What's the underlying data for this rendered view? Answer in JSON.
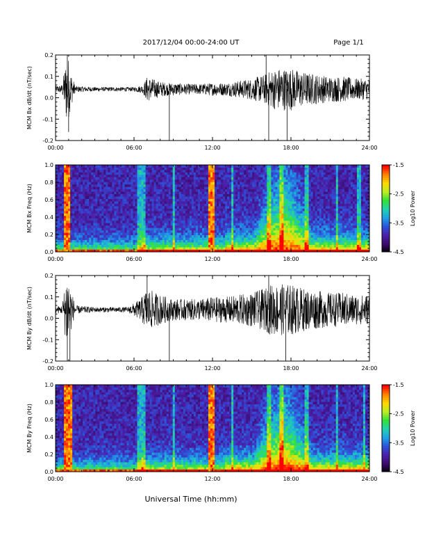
{
  "header": {
    "title": "2017/12/04  00:00-24:00 UT",
    "page": "Page 1/1"
  },
  "footer": {
    "xlabel": "Universal Time (hh:mm)"
  },
  "colors": {
    "background": "#ffffff",
    "trace": "#000000",
    "colormap": [
      "#000000",
      "#3b0a6b",
      "#4b1fa8",
      "#2e50d8",
      "#1fa0e6",
      "#22d0b0",
      "#33e03a",
      "#b8ee22",
      "#ffd800",
      "#ff8000",
      "#ff0000"
    ]
  },
  "chart_data": [
    {
      "type": "line",
      "ylabel": "MCM Bx dB/dt (nT/sec)",
      "xlim": [
        0,
        24
      ],
      "ylim": [
        -0.2,
        0.2
      ],
      "x_ticks": [
        "00:00",
        "06:00",
        "12:00",
        "18:00",
        "24:00"
      ],
      "y_ticks": [
        "-0.2",
        "-0.1",
        "0.0",
        "0.1",
        "0.2"
      ],
      "baseline": 0.04,
      "amplitude_profile": {
        "hours": [
          0,
          0.5,
          0.9,
          1.1,
          1.5,
          3,
          6,
          6.7,
          7,
          7.8,
          8.5,
          9,
          10,
          11,
          12,
          13,
          14,
          15,
          16,
          16.5,
          17,
          18,
          19,
          20,
          21,
          22,
          23,
          24
        ],
        "envelope": [
          0.015,
          0.02,
          0.18,
          0.1,
          0.015,
          0.01,
          0.01,
          0.02,
          0.06,
          0.04,
          0.03,
          0.03,
          0.025,
          0.025,
          0.03,
          0.03,
          0.04,
          0.05,
          0.07,
          0.09,
          0.1,
          0.1,
          0.08,
          0.07,
          0.06,
          0.06,
          0.05,
          0.05
        ]
      },
      "spikes": [
        {
          "x": 0.9,
          "y": 0.2
        },
        {
          "x": 1.0,
          "y": -0.16
        },
        {
          "x": 8.7,
          "y": -0.2
        },
        {
          "x": 16.3,
          "y": -0.2
        },
        {
          "x": 17.7,
          "y": -0.2
        },
        {
          "x": 16.1,
          "y": 0.2
        }
      ]
    },
    {
      "type": "heatmap",
      "ylabel": "MCM Bx Freq (Hz)",
      "xlim": [
        0,
        24
      ],
      "ylim": [
        0,
        1.0
      ],
      "x_ticks": [
        "00:00",
        "06:00",
        "12:00",
        "18:00",
        "24:00"
      ],
      "y_ticks": [
        "0.0",
        "0.2",
        "0.4",
        "0.6",
        "0.8",
        "1.0"
      ],
      "colorbar": {
        "label": "Log10 Power",
        "range": [
          -4.5,
          -1.5
        ],
        "ticks": [
          "-1.5",
          "-2.5",
          "-3.5",
          "-4.5"
        ]
      },
      "broadband_bursts_hours": [
        [
          0.7,
          1.2
        ],
        [
          11.7,
          12.2
        ]
      ],
      "vertical_streaks_hours": [
        6.4,
        6.7,
        9.0,
        13.5,
        16.3,
        17.3,
        19.2,
        21.5,
        23.2
      ],
      "activity_peak": {
        "center_hour": 17.4,
        "max_freq_hz": 0.8
      }
    },
    {
      "type": "line",
      "ylabel": "MCM By dB/dt (nT/sec)",
      "xlim": [
        0,
        24
      ],
      "ylim": [
        -0.2,
        0.2
      ],
      "x_ticks": [
        "00:00",
        "06:00",
        "12:00",
        "18:00",
        "24:00"
      ],
      "y_ticks": [
        "-0.2",
        "-0.1",
        "0.0",
        "0.1",
        "0.2"
      ],
      "baseline": 0.04,
      "amplitude_profile": {
        "hours": [
          0,
          0.5,
          0.9,
          1.1,
          1.5,
          3,
          5.5,
          6.5,
          7,
          8,
          9,
          10,
          11,
          12,
          13,
          14,
          15,
          16,
          16.5,
          17,
          18,
          19,
          20,
          21,
          22,
          23,
          24
        ],
        "envelope": [
          0.015,
          0.02,
          0.2,
          0.12,
          0.02,
          0.012,
          0.012,
          0.05,
          0.1,
          0.07,
          0.05,
          0.05,
          0.05,
          0.06,
          0.06,
          0.07,
          0.08,
          0.1,
          0.12,
          0.12,
          0.12,
          0.1,
          0.09,
          0.08,
          0.08,
          0.07,
          0.07
        ]
      },
      "spikes": [
        {
          "x": 0.9,
          "y": -0.2
        },
        {
          "x": 1.1,
          "y": -0.2
        },
        {
          "x": 7.0,
          "y": 0.2
        },
        {
          "x": 8.7,
          "y": -0.2
        },
        {
          "x": 16.3,
          "y": 0.2
        },
        {
          "x": 17.6,
          "y": -0.2
        }
      ]
    },
    {
      "type": "heatmap",
      "ylabel": "MCM By Freq (Hz)",
      "xlim": [
        0,
        24
      ],
      "ylim": [
        0,
        1.0
      ],
      "x_ticks": [
        "00:00",
        "06:00",
        "12:00",
        "18:00",
        "24:00"
      ],
      "y_ticks": [
        "0.0",
        "0.2",
        "0.4",
        "0.6",
        "0.8",
        "1.0"
      ],
      "colorbar": {
        "label": "Log10 Power",
        "range": [
          -4.5,
          -1.5
        ],
        "ticks": [
          "-1.5",
          "-2.5",
          "-3.5",
          "-4.5"
        ]
      },
      "broadband_bursts_hours": [
        [
          0.7,
          1.3
        ],
        [
          11.7,
          12.2
        ]
      ],
      "vertical_streaks_hours": [
        6.4,
        6.7,
        9.0,
        13.5,
        16.3,
        17.3,
        19.2,
        21.5,
        23.6
      ],
      "activity_peak": {
        "center_hour": 17.4,
        "max_freq_hz": 0.8
      }
    }
  ]
}
